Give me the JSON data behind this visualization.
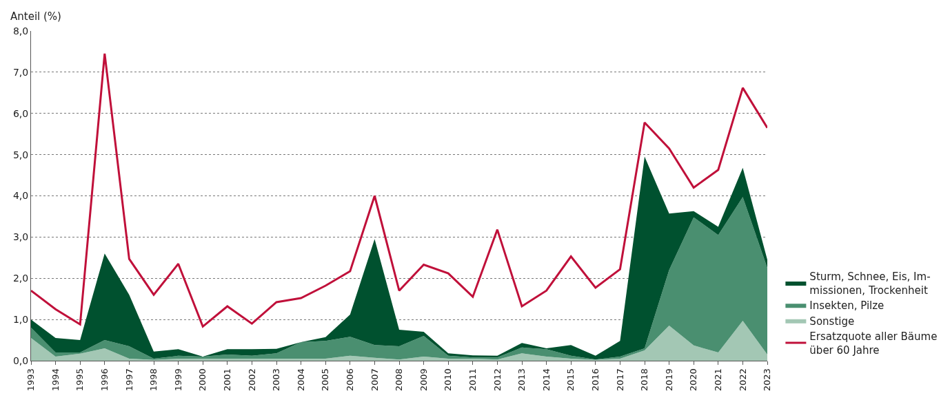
{
  "chart_data": {
    "type": "area",
    "stacked": true,
    "ylabel": "Anteil (%)",
    "x": [
      1993,
      1994,
      1995,
      1996,
      1997,
      1998,
      1999,
      2000,
      2001,
      2002,
      2003,
      2004,
      2005,
      2006,
      2007,
      2008,
      2009,
      2010,
      2011,
      2012,
      2013,
      2014,
      2015,
      2016,
      2017,
      2018,
      2019,
      2020,
      2021,
      2022,
      2023
    ],
    "series": [
      {
        "name": "Sonstige",
        "color": "#a3c7b4",
        "values": [
          0.55,
          0.1,
          0.17,
          0.3,
          0.05,
          0.02,
          0.05,
          0.05,
          0.05,
          0.05,
          0.05,
          0.05,
          0.05,
          0.12,
          0.07,
          0.03,
          0.1,
          0.05,
          0.05,
          0.03,
          0.18,
          0.1,
          0.05,
          0.02,
          0.05,
          0.25,
          0.85,
          0.37,
          0.2,
          0.97,
          0.15
        ]
      },
      {
        "name": "Insekten, Pilze",
        "color": "#4a8f70",
        "values": [
          0.25,
          0.1,
          0.03,
          0.2,
          0.3,
          0.03,
          0.07,
          0.05,
          0.1,
          0.07,
          0.13,
          0.4,
          0.43,
          0.46,
          0.31,
          0.32,
          0.5,
          0.07,
          0.03,
          0.05,
          0.14,
          0.18,
          0.07,
          0.01,
          0.05,
          0.05,
          1.35,
          3.11,
          2.85,
          3.0,
          2.1
        ]
      },
      {
        "name": "Sturm, Schnee, Eis, Im-\nmissionen, Trockenheit",
        "color": "#00512f",
        "values": [
          0.2,
          0.35,
          0.3,
          2.1,
          1.25,
          0.17,
          0.16,
          0.0,
          0.13,
          0.16,
          0.11,
          0.0,
          0.09,
          0.54,
          2.57,
          0.4,
          0.1,
          0.06,
          0.05,
          0.04,
          0.11,
          0.02,
          0.26,
          0.09,
          0.38,
          4.65,
          1.37,
          0.15,
          0.2,
          0.71,
          0.2
        ]
      },
      {
        "name": "Ersatzquote aller Bäume\nüber 60 Jahre",
        "color": "#c0103a",
        "type": "line",
        "values": [
          1.7,
          1.25,
          0.88,
          7.45,
          2.47,
          1.6,
          2.35,
          0.83,
          1.32,
          0.9,
          1.42,
          1.52,
          1.82,
          2.17,
          4.0,
          1.7,
          2.33,
          2.12,
          1.55,
          3.18,
          1.32,
          1.7,
          2.53,
          1.77,
          2.22,
          5.78,
          5.15,
          4.2,
          4.63,
          6.62,
          5.65
        ]
      }
    ],
    "xlim": [
      1993,
      2023
    ],
    "xticks": [
      1993,
      1994,
      1995,
      1996,
      1997,
      1998,
      1999,
      2000,
      2001,
      2002,
      2003,
      2004,
      2005,
      2006,
      2007,
      2008,
      2009,
      2010,
      2011,
      2012,
      2013,
      2014,
      2015,
      2016,
      2017,
      2018,
      2019,
      2020,
      2021,
      2022,
      2023
    ],
    "ylim": [
      0,
      8
    ],
    "yticks": [
      {
        "value": 0,
        "label": "0,0"
      },
      {
        "value": 1,
        "label": "1,0"
      },
      {
        "value": 2,
        "label": "2,0"
      },
      {
        "value": 3,
        "label": "3,0"
      },
      {
        "value": 4,
        "label": "4,0"
      },
      {
        "value": 5,
        "label": "5,0"
      },
      {
        "value": 6,
        "label": "6,0"
      },
      {
        "value": 7,
        "label": "7,0"
      },
      {
        "value": 8,
        "label": "8,0"
      }
    ],
    "grid": "y",
    "legend": "right"
  }
}
